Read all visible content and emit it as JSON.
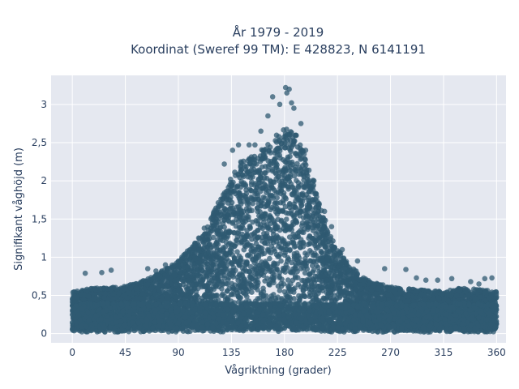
{
  "chart_data": {
    "type": "scatter",
    "title_lines": [
      "År 1979 - 2019",
      "Koordinat (Sweref 99 TM): E 428823, N 6141191"
    ],
    "xlabel": "Vågriktning (grader)",
    "ylabel": "Signifikant våghöjd (m)",
    "xlim": [
      -18,
      368
    ],
    "ylim": [
      -0.12,
      3.38
    ],
    "x_ticks": [
      0,
      45,
      90,
      135,
      180,
      225,
      270,
      315,
      360
    ],
    "x_tick_labels": [
      "0",
      "45",
      "90",
      "135",
      "180",
      "225",
      "270",
      "315",
      "360"
    ],
    "y_ticks": [
      0,
      0.5,
      1,
      1.5,
      2,
      2.5,
      3
    ],
    "y_tick_labels": [
      "0",
      "0,5",
      "1",
      "1,5",
      "2",
      "2,5",
      "3"
    ],
    "grid": true,
    "legend": "none",
    "marker_color": "#2f5a72",
    "plot_background": "#e5e8f0",
    "envelope_upper": {
      "x": [
        0,
        20,
        45,
        65,
        90,
        110,
        125,
        135,
        145,
        160,
        170,
        180,
        190,
        200,
        210,
        220,
        230,
        245,
        260,
        275,
        290,
        315,
        330,
        345,
        360
      ],
      "y": [
        0.55,
        0.6,
        0.62,
        0.72,
        0.95,
        1.3,
        1.75,
        2.05,
        2.3,
        2.4,
        2.55,
        2.7,
        2.6,
        2.25,
        1.7,
        1.25,
        1.0,
        0.75,
        0.65,
        0.6,
        0.58,
        0.55,
        0.6,
        0.58,
        0.55
      ]
    },
    "highlighted_points": [
      {
        "x": 170,
        "y": 3.1
      },
      {
        "x": 176,
        "y": 3.0
      },
      {
        "x": 181,
        "y": 3.22
      },
      {
        "x": 182,
        "y": 3.15
      },
      {
        "x": 184,
        "y": 3.2
      },
      {
        "x": 186,
        "y": 3.02
      },
      {
        "x": 188,
        "y": 2.95
      },
      {
        "x": 166,
        "y": 2.85
      },
      {
        "x": 160,
        "y": 2.65
      },
      {
        "x": 155,
        "y": 2.47
      },
      {
        "x": 150,
        "y": 2.47
      },
      {
        "x": 141,
        "y": 2.47
      },
      {
        "x": 136,
        "y": 2.4
      },
      {
        "x": 129,
        "y": 2.22
      },
      {
        "x": 112,
        "y": 1.38
      },
      {
        "x": 103,
        "y": 1.15
      },
      {
        "x": 93,
        "y": 1.0
      },
      {
        "x": 79,
        "y": 0.9
      },
      {
        "x": 71,
        "y": 0.82
      },
      {
        "x": 64,
        "y": 0.85
      },
      {
        "x": 33,
        "y": 0.83
      },
      {
        "x": 25,
        "y": 0.8
      },
      {
        "x": 11,
        "y": 0.79
      },
      {
        "x": 229,
        "y": 1.1
      },
      {
        "x": 242,
        "y": 0.95
      },
      {
        "x": 265,
        "y": 0.85
      },
      {
        "x": 283,
        "y": 0.84
      },
      {
        "x": 292,
        "y": 0.73
      },
      {
        "x": 310,
        "y": 0.7
      },
      {
        "x": 322,
        "y": 0.72
      },
      {
        "x": 338,
        "y": 0.68
      },
      {
        "x": 350,
        "y": 0.72
      },
      {
        "x": 356,
        "y": 0.73
      },
      {
        "x": 345,
        "y": 0.65
      },
      {
        "x": 300,
        "y": 0.7
      },
      {
        "x": 220,
        "y": 1.4
      },
      {
        "x": 214,
        "y": 1.6
      },
      {
        "x": 205,
        "y": 2.0
      },
      {
        "x": 198,
        "y": 2.4
      },
      {
        "x": 194,
        "y": 2.75
      }
    ]
  }
}
